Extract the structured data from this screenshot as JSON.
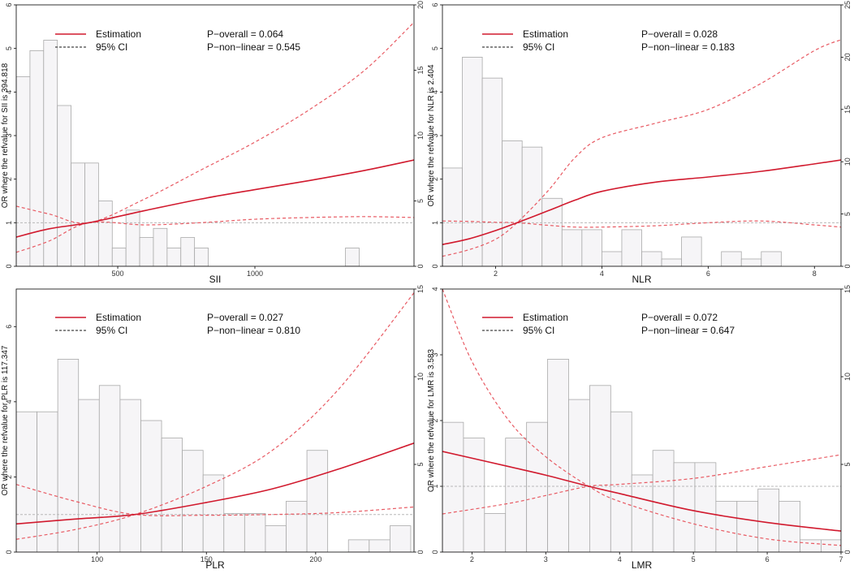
{
  "colors": {
    "estimate": "#d11a2e",
    "ci": "#e85a63",
    "hist_fill": "#f6f5f7",
    "hist_stroke": "#a9a9a9",
    "ref": "#b8b8b8"
  },
  "legend": {
    "estimation": "Estimation",
    "ci": "95% CI"
  },
  "chart_data": [
    {
      "type": "line",
      "xlabel": "SII",
      "ylabel": "OR where the refvalue for SII is 394.818",
      "p_overall": "P−overall = 0.064",
      "p_nonlinear": "P−non−linear = 0.545",
      "xlim": [
        130,
        1580
      ],
      "ylim": [
        0,
        6
      ],
      "y2lim": [
        0,
        20
      ],
      "xticks": [
        500,
        1000
      ],
      "yticks": [
        0,
        1,
        2,
        3,
        4,
        5,
        6
      ],
      "y2ticks": [
        0,
        5,
        10,
        15,
        20
      ],
      "ref_y": 1,
      "estimate": {
        "x": [
          130,
          250,
          395,
          600,
          800,
          1000,
          1200,
          1400,
          1580
        ],
        "y": [
          0.67,
          0.86,
          1.0,
          1.28,
          1.54,
          1.76,
          1.97,
          2.2,
          2.44
        ]
      },
      "ci_lower": {
        "x": [
          130,
          250,
          395,
          600,
          800,
          1000,
          1200,
          1400,
          1580
        ],
        "y": [
          0.32,
          0.58,
          1.0,
          0.95,
          1.0,
          1.08,
          1.12,
          1.14,
          1.12
        ]
      },
      "ci_upper": {
        "x": [
          130,
          250,
          395,
          600,
          800,
          1000,
          1200,
          1400,
          1580
        ],
        "y": [
          1.38,
          1.2,
          1.0,
          1.55,
          2.2,
          2.85,
          3.6,
          4.5,
          5.6
        ]
      },
      "histogram": {
        "x0": [
          130,
          180,
          230,
          280,
          330,
          380,
          430,
          480,
          530,
          580,
          630,
          680,
          730,
          780,
          830,
          880,
          930,
          980,
          1030,
          1080,
          1130,
          1180,
          1230,
          1280,
          1330,
          1380
        ],
        "width": 50,
        "counts": [
          14.5,
          16.5,
          17.3,
          12.3,
          7.9,
          7.9,
          5.0,
          1.4,
          4.3,
          2.2,
          2.9,
          1.4,
          2.2,
          1.4,
          0,
          0,
          0,
          0,
          0,
          0,
          0,
          0,
          0,
          0,
          1.4,
          0
        ]
      }
    },
    {
      "type": "line",
      "xlabel": "NLR",
      "ylabel": "OR where the refvalue for NLR is 2.404",
      "p_overall": "P−overall = 0.028",
      "p_nonlinear": "P−non−linear = 0.183",
      "xlim": [
        1.0,
        8.5
      ],
      "ylim": [
        0,
        6
      ],
      "y2lim": [
        0,
        25
      ],
      "xticks": [
        2,
        4,
        6,
        8
      ],
      "yticks": [
        0,
        1,
        2,
        3,
        4,
        5,
        6
      ],
      "y2ticks": [
        0,
        5,
        10,
        15,
        20,
        25
      ],
      "ref_y": 1,
      "estimate": {
        "x": [
          1.0,
          1.5,
          2.0,
          2.404,
          3.0,
          3.5,
          4.0,
          5.0,
          6.0,
          7.0,
          8.0,
          8.5
        ],
        "y": [
          0.5,
          0.63,
          0.82,
          1.0,
          1.28,
          1.52,
          1.72,
          1.93,
          2.05,
          2.18,
          2.35,
          2.44
        ]
      },
      "ci_lower": {
        "x": [
          1.0,
          1.5,
          2.0,
          2.404,
          3.0,
          3.5,
          4.0,
          5.0,
          6.0,
          7.0,
          8.0,
          8.5
        ],
        "y": [
          1.04,
          1.03,
          1.01,
          1.0,
          0.94,
          0.9,
          0.9,
          0.93,
          1.0,
          1.04,
          0.95,
          0.9
        ]
      },
      "ci_upper": {
        "x": [
          1.0,
          1.5,
          2.0,
          2.404,
          3.0,
          3.5,
          4.0,
          5.0,
          6.0,
          7.0,
          8.0,
          8.5
        ],
        "y": [
          0.23,
          0.38,
          0.62,
          1.0,
          1.75,
          2.5,
          2.95,
          3.28,
          3.6,
          4.2,
          4.95,
          5.2
        ]
      },
      "histogram": {
        "x0": [
          1.0,
          1.375,
          1.75,
          2.125,
          2.5,
          2.875,
          3.25,
          3.625,
          4.0,
          4.375,
          4.75,
          5.125,
          5.5,
          5.875,
          6.25,
          6.625,
          7.0,
          7.375,
          7.75,
          8.125
        ],
        "width": 0.375,
        "counts": [
          9.4,
          20.0,
          18.0,
          12.0,
          11.4,
          6.5,
          3.5,
          3.5,
          1.4,
          3.5,
          1.4,
          0.7,
          2.8,
          0,
          1.4,
          0.7,
          1.4,
          0,
          0,
          0
        ]
      }
    },
    {
      "type": "line",
      "xlabel": "PLR",
      "ylabel": "OR where the refvalue for PLR is 117.347",
      "p_overall": "P−overall = 0.027",
      "p_nonlinear": "P−non−linear = 0.810",
      "xlim": [
        63,
        245
      ],
      "ylim": [
        0,
        7
      ],
      "y2lim": [
        0,
        15
      ],
      "xticks": [
        100,
        150,
        200
      ],
      "yticks": [
        0,
        2,
        4,
        6
      ],
      "y2ticks": [
        0,
        5,
        10,
        15
      ],
      "ref_y": 1,
      "estimate": {
        "x": [
          63,
          90,
          117.347,
          150,
          180,
          210,
          245
        ],
        "y": [
          0.75,
          0.88,
          1.0,
          1.32,
          1.68,
          2.2,
          2.9
        ]
      },
      "ci_lower": {
        "x": [
          63,
          90,
          117.347,
          150,
          180,
          210,
          245
        ],
        "y": [
          1.8,
          1.35,
          1.0,
          0.98,
          1.0,
          1.05,
          1.2
        ]
      },
      "ci_upper": {
        "x": [
          63,
          90,
          117.347,
          150,
          180,
          210,
          245
        ],
        "y": [
          0.34,
          0.6,
          1.0,
          1.75,
          2.7,
          4.3,
          6.9
        ]
      },
      "histogram": {
        "x0": [
          63,
          72.5,
          82,
          91.5,
          101,
          110.5,
          120,
          129.5,
          139,
          148.5,
          158,
          167.5,
          177,
          186.5,
          196,
          205.5,
          215,
          224.5,
          234
        ],
        "width": 9.5,
        "counts": [
          8.0,
          8.0,
          11.0,
          8.7,
          9.5,
          8.7,
          7.5,
          6.5,
          5.8,
          4.4,
          2.2,
          2.2,
          1.5,
          2.9,
          5.8,
          0,
          0.7,
          0.7,
          1.5
        ]
      }
    },
    {
      "type": "line",
      "xlabel": "LMR",
      "ylabel": "OR where the refvalue for LMR is 3.583",
      "p_overall": "P−overall = 0.072",
      "p_nonlinear": "P−non−linear = 0.647",
      "xlim": [
        1.6,
        7.0
      ],
      "ylim": [
        0,
        4
      ],
      "y2lim": [
        0,
        15
      ],
      "xticks": [
        2,
        3,
        4,
        5,
        6,
        7
      ],
      "yticks": [
        0,
        1,
        2,
        3,
        4
      ],
      "y2ticks": [
        0,
        5,
        10,
        15
      ],
      "ref_y": 1,
      "estimate": {
        "x": [
          1.6,
          2.5,
          3.0,
          3.583,
          4.0,
          5.0,
          6.0,
          7.0
        ],
        "y": [
          1.53,
          1.3,
          1.17,
          1.0,
          0.89,
          0.63,
          0.45,
          0.32
        ]
      },
      "ci_lower": {
        "x": [
          1.6,
          2.0,
          2.5,
          3.0,
          3.583,
          4.0,
          5.0,
          6.0,
          7.0
        ],
        "y": [
          4.0,
          2.9,
          2.0,
          1.45,
          1.0,
          0.77,
          0.43,
          0.2,
          0.1
        ]
      },
      "ci_upper": {
        "x": [
          1.6,
          2.5,
          3.0,
          3.583,
          4.0,
          5.0,
          6.0,
          7.0
        ],
        "y": [
          0.58,
          0.74,
          0.86,
          1.0,
          1.03,
          1.12,
          1.3,
          1.48
        ]
      },
      "histogram": {
        "x0": [
          1.6,
          1.885,
          2.17,
          2.455,
          2.74,
          3.025,
          3.31,
          3.595,
          3.88,
          4.165,
          4.45,
          4.735,
          5.02,
          5.305,
          5.59,
          5.875,
          6.16,
          6.445,
          6.73
        ],
        "width": 0.285,
        "counts": [
          7.4,
          6.5,
          2.2,
          6.5,
          7.4,
          11.0,
          8.7,
          9.5,
          8.0,
          4.4,
          5.8,
          5.1,
          5.1,
          2.9,
          2.9,
          3.6,
          2.9,
          0.7,
          0.7
        ]
      }
    }
  ]
}
